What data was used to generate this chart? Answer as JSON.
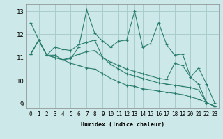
{
  "title": "",
  "xlabel": "Humidex (Indice chaleur)",
  "ylabel": "",
  "background_color": "#cde8e8",
  "grid_color": "#aacccc",
  "line_color": "#2a7d6e",
  "xlim": [
    -0.5,
    23.5
  ],
  "ylim": [
    8.8,
    13.3
  ],
  "yticks": [
    9,
    10,
    11,
    12,
    13
  ],
  "xticks": [
    0,
    1,
    2,
    3,
    4,
    5,
    6,
    7,
    8,
    9,
    10,
    11,
    12,
    13,
    14,
    15,
    16,
    17,
    18,
    19,
    20,
    21,
    22,
    23
  ],
  "series": [
    [
      12.5,
      11.75,
      11.1,
      11.1,
      10.9,
      10.95,
      11.45,
      13.05,
      12.05,
      11.7,
      11.45,
      11.7,
      11.75,
      13.0,
      11.45,
      11.6,
      12.5,
      11.55,
      11.1,
      11.15,
      10.15,
      9.85,
      9.05,
      8.9
    ],
    [
      11.15,
      11.75,
      11.1,
      11.45,
      11.35,
      11.3,
      11.55,
      11.65,
      11.75,
      11.0,
      10.8,
      10.65,
      10.5,
      10.4,
      10.3,
      10.2,
      10.1,
      10.05,
      10.75,
      10.65,
      10.15,
      10.55,
      9.85,
      9.05
    ],
    [
      11.15,
      11.75,
      11.1,
      11.0,
      10.9,
      11.0,
      11.15,
      11.25,
      11.3,
      11.0,
      10.7,
      10.5,
      10.3,
      10.2,
      10.1,
      10.0,
      9.9,
      9.85,
      9.8,
      9.75,
      9.7,
      9.6,
      9.05,
      8.9
    ],
    [
      11.15,
      11.75,
      11.1,
      11.0,
      10.9,
      10.75,
      10.65,
      10.55,
      10.5,
      10.3,
      10.1,
      9.95,
      9.8,
      9.75,
      9.65,
      9.6,
      9.55,
      9.5,
      9.45,
      9.4,
      9.3,
      9.2,
      9.05,
      8.9
    ]
  ]
}
